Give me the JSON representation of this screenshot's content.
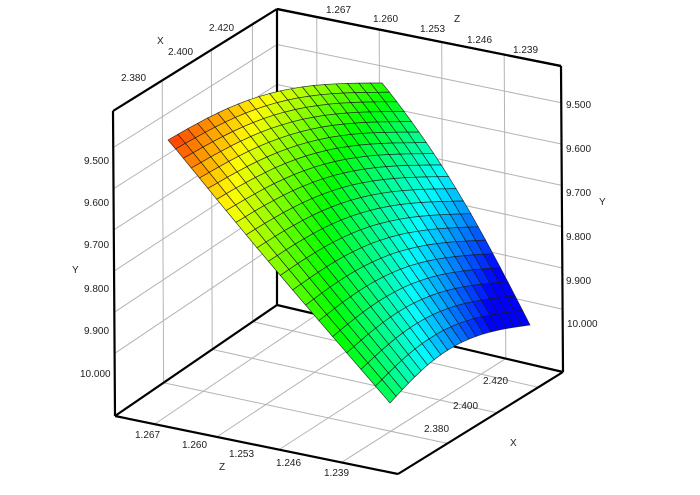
{
  "chart_data": {
    "type": "surface",
    "title": "",
    "axes": {
      "x": {
        "label": "X",
        "ticks": [
          "2.380",
          "2.400",
          "2.420"
        ],
        "range": [
          2.37,
          2.43
        ]
      },
      "y": {
        "label": "Y",
        "ticks": [
          "9.500",
          "9.600",
          "9.700",
          "9.800",
          "9.900",
          "10.000"
        ],
        "range": [
          9.4,
          10.1
        ],
        "inverted": true
      },
      "z": {
        "label": "Z",
        "ticks": [
          "1.267",
          "1.260",
          "1.253",
          "1.246",
          "1.239"
        ],
        "range": [
          1.235,
          1.272
        ]
      }
    },
    "surface": {
      "grid_rows": 20,
      "grid_cols": 20,
      "colormap": [
        "#ff0000",
        "#ffff00",
        "#00ff00",
        "#00ffff",
        "#0000ff"
      ],
      "corners": [
        {
          "x": 2.38,
          "z": 1.267,
          "y": 9.45,
          "color": "#ff0000"
        },
        {
          "x": 2.38,
          "z": 1.239,
          "y": 9.95,
          "color": "#00c0ff"
        },
        {
          "x": 2.42,
          "z": 1.267,
          "y": 9.62,
          "color": "#33ee00"
        },
        {
          "x": 2.42,
          "z": 1.239,
          "y": 10.05,
          "color": "#0000ff"
        }
      ]
    },
    "grid": true,
    "legend": null
  },
  "labels": {
    "x_axis_label": "X",
    "y_axis_label": "Y",
    "z_axis_label": "Z"
  }
}
